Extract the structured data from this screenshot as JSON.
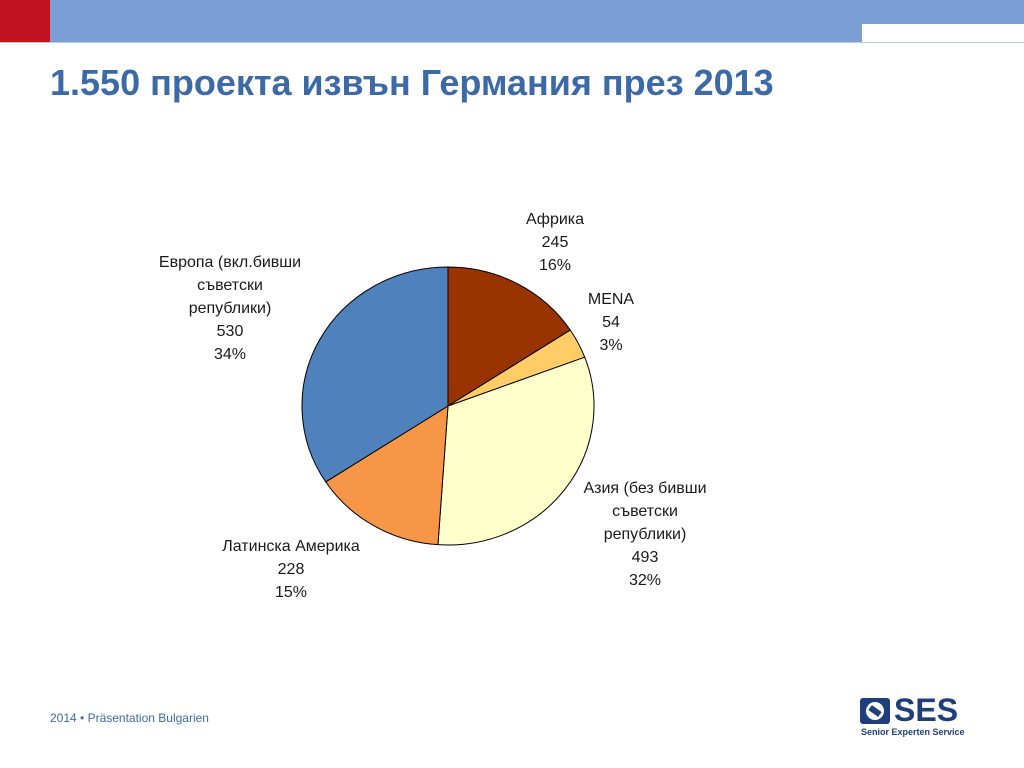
{
  "header": {
    "title": "1.550 проекта извън Германия през 2013"
  },
  "chart_data": {
    "type": "pie",
    "slices": [
      {
        "label_lines": [
          "Африка"
        ],
        "value": "245",
        "percent": "16%",
        "count": 245,
        "color": "#993300"
      },
      {
        "label_lines": [
          "MENA"
        ],
        "value": "54",
        "percent": "3%",
        "count": 54,
        "color": "#ffcc66"
      },
      {
        "label_lines": [
          "Азия (без бивши",
          "съветски",
          "републики)"
        ],
        "value": "493",
        "percent": "32%",
        "count": 493,
        "color": "#ffffcc"
      },
      {
        "label_lines": [
          "Латинска Америка"
        ],
        "value": "228",
        "percent": "15%",
        "count": 228,
        "color": "#f79646"
      },
      {
        "label_lines": [
          "Европа (вкл.бивши",
          "съветски",
          "републики)"
        ],
        "value": "530",
        "percent": "34%",
        "count": 530,
        "color": "#4f81bd"
      }
    ],
    "start": "12 o'clock",
    "direction": "clockwise"
  },
  "footer": {
    "text": "2014 • Präsentation Bulgarien"
  },
  "logo": {
    "text": "SES",
    "subtitle": "Senior Experten Service"
  }
}
